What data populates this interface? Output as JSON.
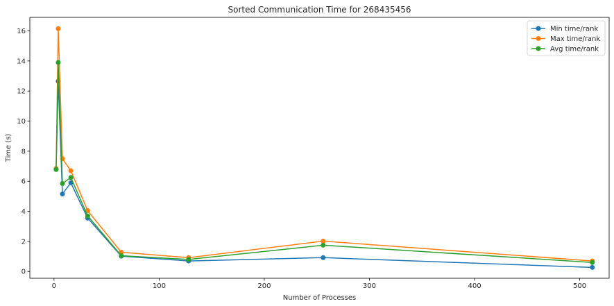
{
  "chart_data": {
    "type": "line",
    "title": "Sorted Communication Time for 268435456",
    "xlabel": "Number of Processes",
    "ylabel": "Time (s)",
    "x": [
      2,
      4,
      8,
      16,
      32,
      64,
      128,
      256,
      512
    ],
    "xlim": [
      -23,
      528
    ],
    "ylim": [
      -0.45,
      16.9
    ],
    "xticks": [
      0,
      100,
      200,
      300,
      400,
      500
    ],
    "yticks": [
      0,
      2,
      4,
      6,
      8,
      10,
      12,
      14,
      16
    ],
    "legend_position": "top-right",
    "grid": false,
    "series": [
      {
        "name": "Min time/rank",
        "color": "#1f77b4",
        "values": [
          6.8,
          12.65,
          5.15,
          5.9,
          3.55,
          1.02,
          0.7,
          0.92,
          0.27
        ]
      },
      {
        "name": "Max time/rank",
        "color": "#ff7f0e",
        "values": [
          6.85,
          16.15,
          7.5,
          6.7,
          4.05,
          1.28,
          0.92,
          2.02,
          0.7
        ]
      },
      {
        "name": "Avg time/rank",
        "color": "#2ca02c",
        "values": [
          6.78,
          13.9,
          5.85,
          6.25,
          3.7,
          1.05,
          0.8,
          1.75,
          0.6
        ]
      }
    ]
  }
}
